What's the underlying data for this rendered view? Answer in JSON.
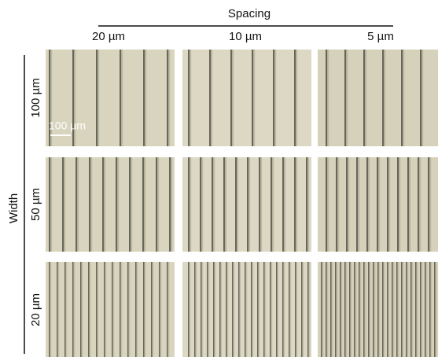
{
  "header": {
    "title": "Spacing",
    "columns": [
      "20 µm",
      "10 µm",
      "5 µm"
    ]
  },
  "side": {
    "title": "Width",
    "rows": [
      "100 µm",
      "50 µm",
      "20 µm"
    ]
  },
  "scale_bar": "100 µm"
}
